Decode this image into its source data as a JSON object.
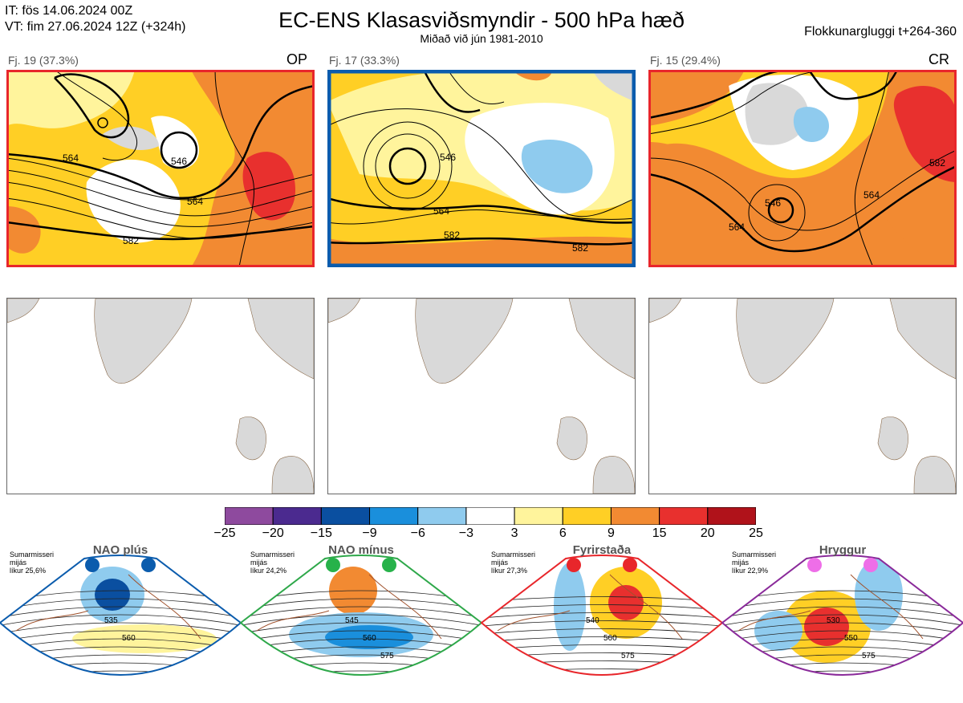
{
  "header": {
    "it_line": "IT: fös 14.06.2024 00Z",
    "vt_line": "VT: fim 27.06.2024 12Z  (+324h)",
    "title": "EC-ENS Klasasviðsmyndir - 500 hPa hæð",
    "subtitle": "Miðað við jún 1981-2010",
    "window": "Flokkunargluggi t+264-360"
  },
  "clusters": [
    {
      "label": "Fj. 19 (37.3%)",
      "tag": "OP",
      "border_color": "#e8262b",
      "contours": [
        "564",
        "582",
        "546"
      ]
    },
    {
      "label": "Fj. 17 (33.3%)",
      "tag": "",
      "border_color": "#0b5cad",
      "contours": [
        "546",
        "564",
        "582"
      ]
    },
    {
      "label": "Fj. 15 (29.4%)",
      "tag": "CR",
      "border_color": "#e8262b",
      "contours": [
        "546",
        "564",
        "582"
      ]
    }
  ],
  "colorbar": {
    "ticks": [
      "−25",
      "−20",
      "−15",
      "−9",
      "−6",
      "−3",
      "3",
      "6",
      "9",
      "15",
      "20",
      "25"
    ],
    "colors": [
      "#8e4a9e",
      "#4b2a8f",
      "#0a4fa0",
      "#1a8fdc",
      "#8fcbee",
      "#ffffff",
      "#fff49c",
      "#ffcf25",
      "#f28a32",
      "#e8302e",
      "#b0121a"
    ]
  },
  "regimes": [
    {
      "name": "NAO plús",
      "note1": "Sumarmisseri",
      "note2": "mijás",
      "prob": "líkur 25,6%",
      "color": "#0b5cad",
      "dot": "#0b5cad",
      "contours": [
        "535",
        "560"
      ]
    },
    {
      "name": "NAO mínus",
      "note1": "Sumarmisseri",
      "note2": "mijás",
      "prob": "líkur 24,2%",
      "color": "#2ea84a",
      "dot": "#27b24a",
      "contours": [
        "545",
        "560",
        "575"
      ]
    },
    {
      "name": "Fyrirstaða",
      "note1": "Sumarmisseri",
      "note2": "mijás",
      "prob": "líkur 27,3%",
      "color": "#e8262b",
      "dot": "#e8262b",
      "contours": [
        "540",
        "560",
        "575"
      ]
    },
    {
      "name": "Hryggur",
      "note1": "Sumarmisseri",
      "note2": "mijás",
      "prob": "líkur 22,9%",
      "color": "#8a2a9a",
      "dot": "#ee6ee8",
      "contours": [
        "530",
        "550",
        "575"
      ]
    }
  ]
}
